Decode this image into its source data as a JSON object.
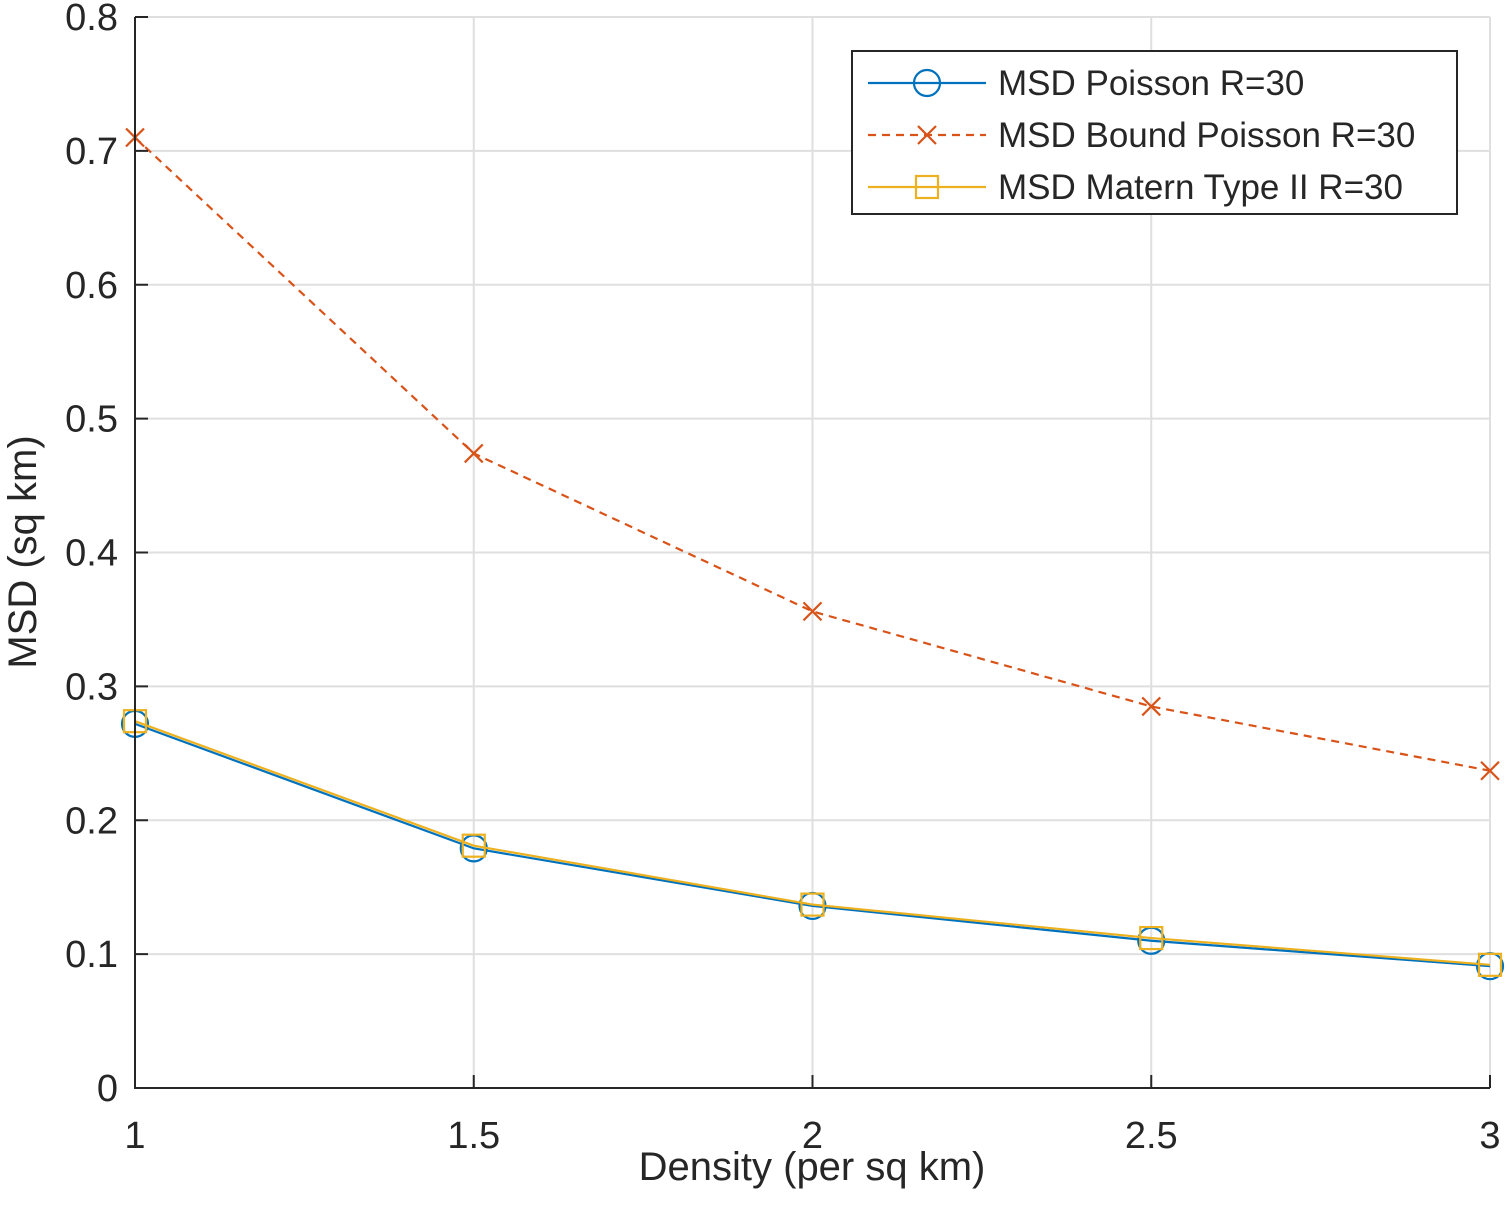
{
  "chart_data": {
    "type": "line",
    "title": "",
    "xlabel": "Density (per sq km)",
    "ylabel": "MSD (sq km)",
    "xlim": [
      1,
      3
    ],
    "ylim": [
      0,
      0.8
    ],
    "grid": true,
    "x_ticks": [
      1,
      1.5,
      2,
      2.5,
      3
    ],
    "x_tick_labels": [
      "1",
      "1.5",
      "2",
      "2.5",
      "3"
    ],
    "y_ticks": [
      0,
      0.1,
      0.2,
      0.3,
      0.4,
      0.5,
      0.6,
      0.7,
      0.8
    ],
    "y_tick_labels": [
      "0",
      "0.1",
      "0.2",
      "0.3",
      "0.4",
      "0.5",
      "0.6",
      "0.7",
      "0.8"
    ],
    "legend_position": "top-right",
    "x": [
      1,
      1.5,
      2,
      2.5,
      3
    ],
    "series": [
      {
        "name": "MSD Poisson R=30",
        "values": [
          0.272,
          0.179,
          0.136,
          0.11,
          0.091
        ],
        "color": "#0072BD",
        "marker": "circle",
        "dash": "solid"
      },
      {
        "name": "MSD Bound Poisson R=30",
        "values": [
          0.71,
          0.474,
          0.356,
          0.285,
          0.237
        ],
        "color": "#D95319",
        "marker": "x",
        "dash": "dashed"
      },
      {
        "name": "MSD Matern Type II R=30",
        "values": [
          0.274,
          0.181,
          0.137,
          0.112,
          0.092
        ],
        "color": "#EDB120",
        "marker": "square",
        "dash": "solid"
      }
    ]
  }
}
